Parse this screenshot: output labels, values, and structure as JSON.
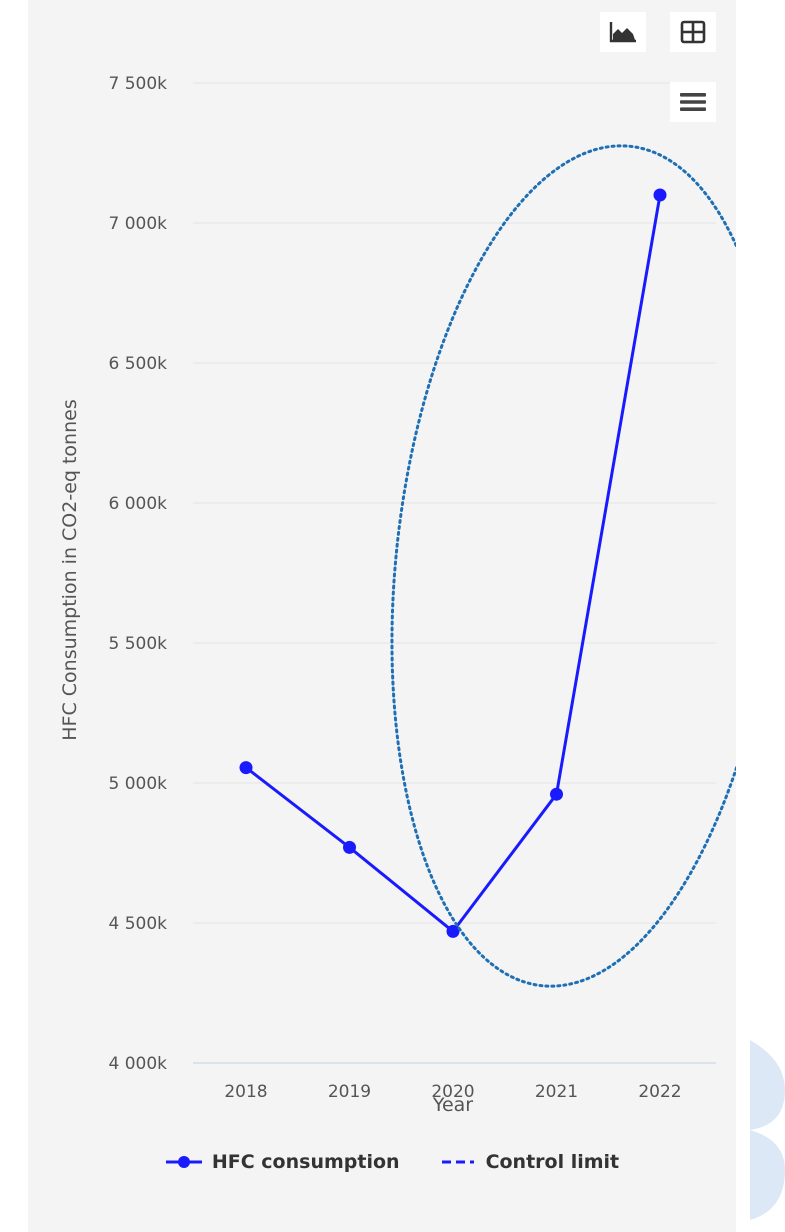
{
  "toolbar": {
    "chart_view_icon": "area-chart-icon",
    "table_view_icon": "table-icon",
    "menu_icon": "hamburger-menu-icon"
  },
  "colors": {
    "series": "#1a1aff",
    "highlight": "#1f6fb5",
    "grid": "#e6e6e6",
    "panel": "#f4f4f4"
  },
  "chart_data": {
    "type": "line",
    "xlabel": "Year",
    "ylabel": "HFC Consumption in CO2-eq tonnes",
    "x": [
      "2018",
      "2019",
      "2020",
      "2021",
      "2022"
    ],
    "ylim": [
      4000000,
      7500000
    ],
    "yticks": [
      4000000,
      4500000,
      5000000,
      5500000,
      6000000,
      6500000,
      7000000,
      7500000
    ],
    "ytick_labels": [
      "4 000k",
      "4 500k",
      "5 000k",
      "5 500k",
      "6 000k",
      "6 500k",
      "7 000k",
      "7 500k"
    ],
    "series": [
      {
        "name": "HFC consumption",
        "values": [
          5055000,
          4770000,
          4470000,
          4960000,
          7100000
        ]
      }
    ],
    "legend": [
      {
        "label": "HFC consumption",
        "style": "solid-with-marker"
      },
      {
        "label": "Control limit",
        "style": "dashed"
      }
    ],
    "grid": true,
    "legend_position": "bottom",
    "annotation": "dotted ellipse highlighting 2020–2022"
  }
}
